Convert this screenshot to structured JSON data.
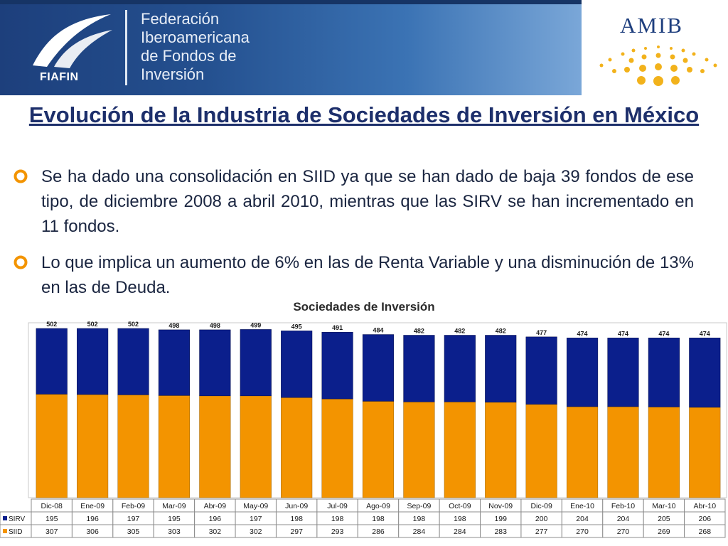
{
  "header": {
    "fiafin_name": "FIAFIN",
    "federation_name": "Federación\nIberoamericana\nde Fondos de\nInversión",
    "amib_name": "AMIB"
  },
  "title": "Evolución de la Industria de Sociedades de Inversión en México",
  "bullets": [
    "Se ha dado una consolidación en SIID ya que se han dado de baja 39 fondos de ese tipo, de diciembre 2008 a abril 2010, mientras que las SIRV se han incrementado en 11 fondos.",
    "Lo que implica un aumento de 6% en las de Renta Variable y una disminución de 13% en las de Deuda."
  ],
  "colors": {
    "sirv": "#0b1f8c",
    "siid": "#f39400",
    "title": "#1d2f6b",
    "bullet": "#f39400"
  },
  "chart_data": {
    "type": "bar",
    "stacked": true,
    "title": "Sociedades de Inversión",
    "categories": [
      "Dic-08",
      "Ene-09",
      "Feb-09",
      "Mar-09",
      "Abr-09",
      "May-09",
      "Jun-09",
      "Jul-09",
      "Ago-09",
      "Sep-09",
      "Oct-09",
      "Nov-09",
      "Dic-09",
      "Ene-10",
      "Feb-10",
      "Mar-10",
      "Abr-10"
    ],
    "series": [
      {
        "name": "SIRV",
        "values": [
          195,
          196,
          197,
          195,
          196,
          197,
          198,
          198,
          198,
          198,
          198,
          199,
          200,
          204,
          204,
          205,
          206
        ]
      },
      {
        "name": "SIID",
        "values": [
          307,
          306,
          305,
          303,
          302,
          302,
          297,
          293,
          286,
          284,
          284,
          283,
          277,
          270,
          270,
          269,
          268
        ]
      }
    ],
    "totals": [
      502,
      502,
      502,
      498,
      498,
      499,
      495,
      491,
      484,
      482,
      482,
      482,
      477,
      474,
      474,
      474,
      474
    ],
    "legend": "data-table",
    "grid": false
  }
}
